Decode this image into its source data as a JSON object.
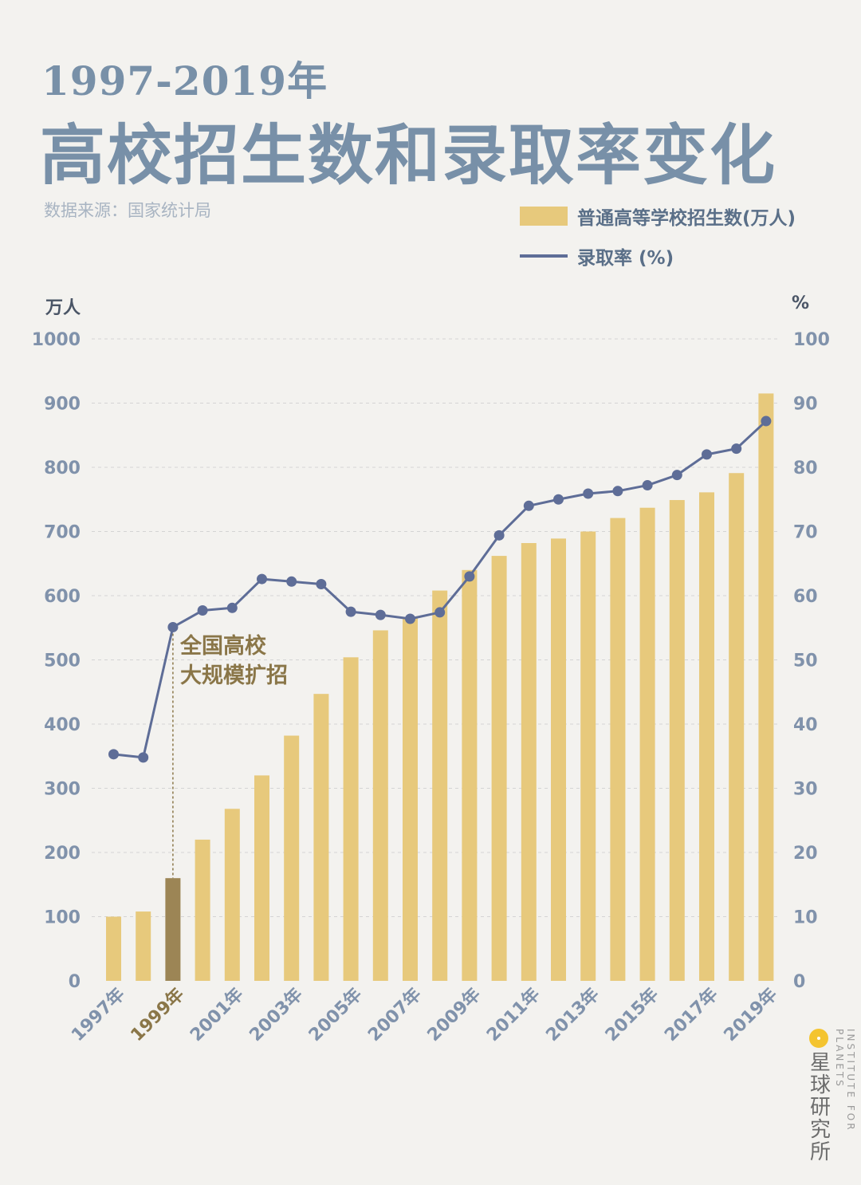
{
  "header": {
    "year_range": "1997-2019年",
    "title": "高校招生数和录取率变化",
    "source": "数据来源：国家统计局"
  },
  "legend": {
    "bar_label": "普通高等学校招生数(万人)",
    "line_label": "录取率 (%)"
  },
  "axes": {
    "left_unit": "万人",
    "right_unit": "%"
  },
  "annotation": {
    "line1": "全国高校",
    "line2": "大规模扩招"
  },
  "logo": {
    "name": "星球研究所",
    "english": "INSTITUTE FOR PLANETS"
  },
  "colors": {
    "bar": "#e7c97c",
    "bar_highlight": "#9c8555",
    "line": "#5e6d97",
    "grid": "#d4d4d4",
    "tick": "#8092ab",
    "highlight_text": "#8a7648"
  },
  "chart_data": {
    "type": "bar",
    "title": "高校招生数和录取率变化",
    "categories": [
      "1997年",
      "1998年",
      "1999年",
      "2000年",
      "2001年",
      "2002年",
      "2003年",
      "2004年",
      "2005年",
      "2006年",
      "2007年",
      "2008年",
      "2009年",
      "2010年",
      "2011年",
      "2012年",
      "2013年",
      "2014年",
      "2015年",
      "2016年",
      "2017年",
      "2018年",
      "2019年"
    ],
    "x_tick_labels": [
      "1997年",
      "1999年",
      "2001年",
      "2003年",
      "2005年",
      "2007年",
      "2009年",
      "2011年",
      "2013年",
      "2015年",
      "2017年",
      "2019年"
    ],
    "highlight_category": "1999年",
    "series": [
      {
        "name": "普通高等学校招生数(万人)",
        "type": "bar",
        "axis": "left",
        "values": [
          100,
          108,
          160,
          220,
          268,
          320,
          382,
          447,
          504,
          546,
          566,
          608,
          640,
          662,
          682,
          689,
          700,
          721,
          737,
          749,
          761,
          791,
          915
        ]
      },
      {
        "name": "录取率 (%)",
        "type": "line",
        "axis": "right",
        "values": [
          35.3,
          34.8,
          55.1,
          57.7,
          58.1,
          62.6,
          62.2,
          61.8,
          57.5,
          57.0,
          56.4,
          57.4,
          63.0,
          69.4,
          74.0,
          75.0,
          75.9,
          76.3,
          77.2,
          78.8,
          82.0,
          82.9,
          87.2
        ]
      }
    ],
    "ylabel": "万人",
    "y2label": "%",
    "ylim": [
      0,
      1000
    ],
    "y2lim": [
      0,
      100
    ],
    "yticks": [
      0,
      100,
      200,
      300,
      400,
      500,
      600,
      700,
      800,
      900,
      1000
    ],
    "y2ticks": [
      0,
      10,
      20,
      30,
      40,
      50,
      60,
      70,
      80,
      90,
      100
    ],
    "grid": true
  }
}
